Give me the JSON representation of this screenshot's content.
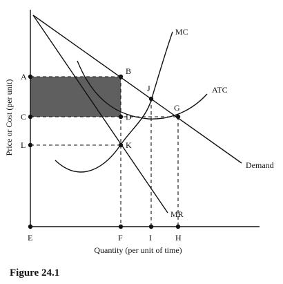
{
  "figure": {
    "caption": "Figure 24.1",
    "x_axis_title": "Quantity (per unit of time)",
    "y_axis_title": "Price or Cost (per unit)"
  },
  "points": {
    "A": "A",
    "B": "B",
    "C": "C",
    "D": "D",
    "E": "E",
    "F": "F",
    "G": "G",
    "H": "H",
    "I": "I",
    "J": "J",
    "K": "K",
    "L": "L"
  },
  "curves": {
    "mc": "MC",
    "atc": "ATC",
    "demand": "Demand",
    "mr": "MR"
  },
  "colors": {
    "line": "#111111",
    "shaded_rectangle": "#5f5f5f"
  }
}
